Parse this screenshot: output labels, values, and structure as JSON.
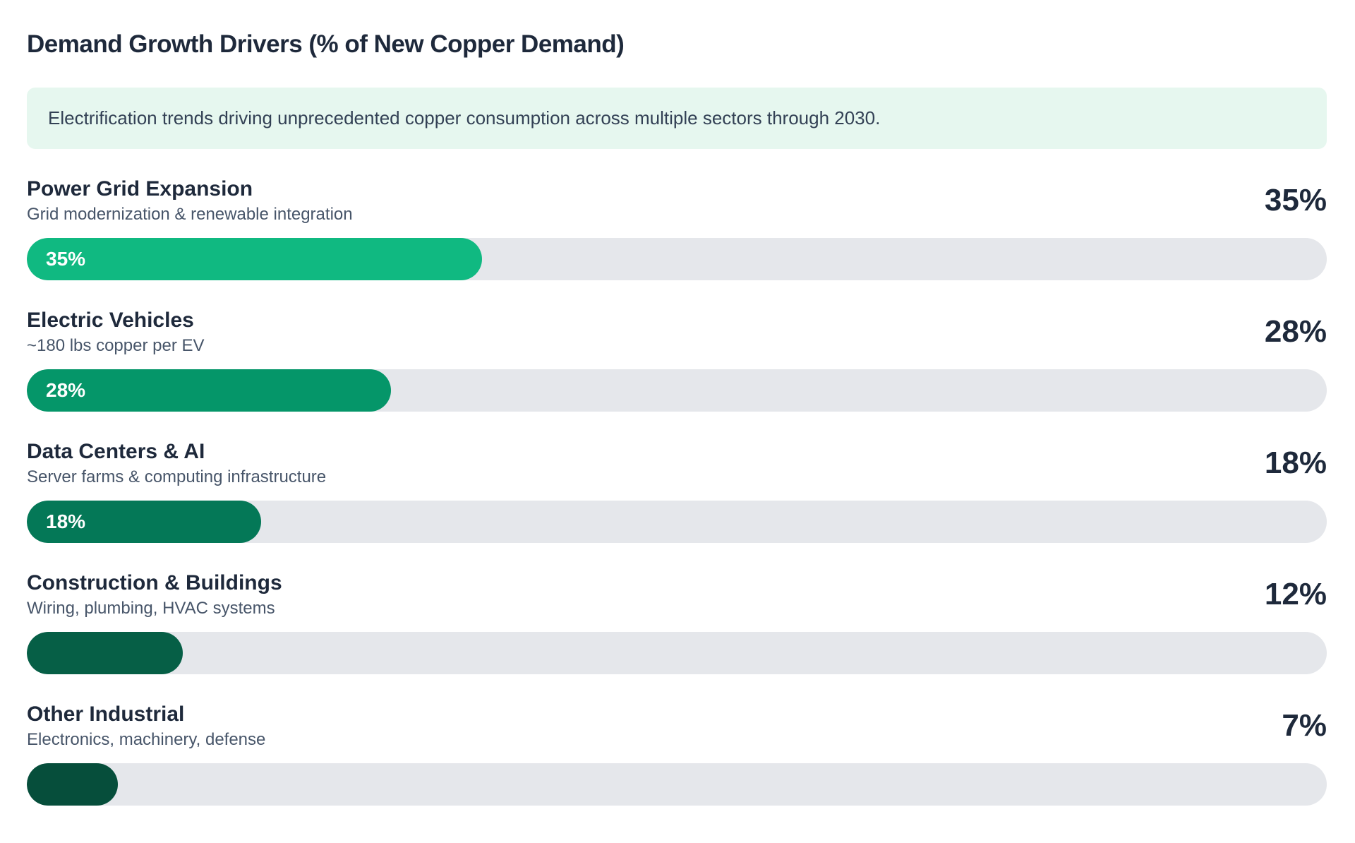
{
  "header": {
    "title": "Demand Growth Drivers (% of New Copper Demand)"
  },
  "note": {
    "text": "Electrification trends driving unprecedented copper consumption across multiple sectors through 2030."
  },
  "colors": {
    "track": "#e5e7eb",
    "note_background": "#e6f7ef",
    "heading_text": "#1e293b",
    "subtitle_text": "#475569",
    "bar_scale": [
      "#10b981",
      "#059669",
      "#047857",
      "#065f46",
      "#064e3b"
    ]
  },
  "chart_data": {
    "type": "bar",
    "orientation": "horizontal",
    "title": "Demand Growth Drivers (% of New Copper Demand)",
    "subtitle_note": "Electrification trends driving unprecedented copper consumption across multiple sectors through 2030.",
    "xlim": [
      0,
      100
    ],
    "unit": "%",
    "grid": false,
    "legend": false,
    "categories": [
      "Power Grid Expansion",
      "Electric Vehicles",
      "Data Centers & AI",
      "Construction & Buildings",
      "Other Industrial"
    ],
    "values": [
      35,
      28,
      18,
      12,
      7
    ],
    "bars": [
      {
        "label": "Power Grid Expansion",
        "sublabel": "Grid modernization & renewable integration",
        "value": 35,
        "value_label": "35%",
        "bar_label": "35%",
        "color": "#10b981"
      },
      {
        "label": "Electric Vehicles",
        "sublabel": "~180 lbs copper per EV",
        "value": 28,
        "value_label": "28%",
        "bar_label": "28%",
        "color": "#059669"
      },
      {
        "label": "Data Centers & AI",
        "sublabel": "Server farms & computing infrastructure",
        "value": 18,
        "value_label": "18%",
        "bar_label": "18%",
        "color": "#047857"
      },
      {
        "label": "Construction & Buildings",
        "sublabel": "Wiring, plumbing, HVAC systems",
        "value": 12,
        "value_label": "12%",
        "bar_label": "",
        "color": "#065f46"
      },
      {
        "label": "Other Industrial",
        "sublabel": "Electronics, machinery, defense",
        "value": 7,
        "value_label": "7%",
        "bar_label": "",
        "color": "#064e3b"
      }
    ]
  }
}
